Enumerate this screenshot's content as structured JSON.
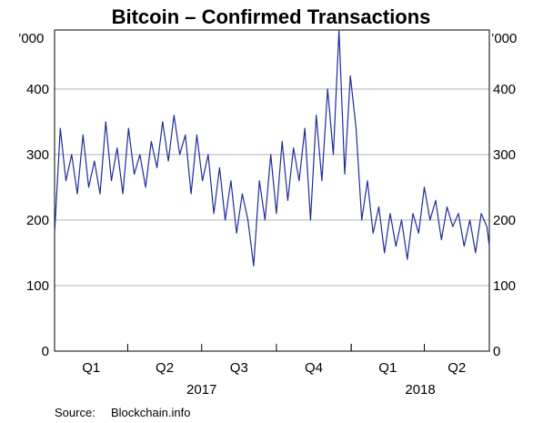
{
  "chart_data": {
    "type": "line",
    "title": "Bitcoin – Confirmed Transactions",
    "y_unit_label_left": "’000",
    "y_unit_label_right": "’000",
    "ylim": [
      0,
      490
    ],
    "y_ticks": [
      0,
      100,
      200,
      300,
      400
    ],
    "x_quarter_labels": [
      "Q1",
      "Q2",
      "Q3",
      "Q4",
      "Q1",
      "Q2"
    ],
    "x_year_labels": [
      "2017",
      "2018"
    ],
    "x_range": [
      "2017-01-01",
      "2018-06-20"
    ],
    "grid": "horizontal",
    "line_color": "#1f2b9c",
    "series": [
      {
        "x": [
          "2017-01-01",
          "2017-01-08",
          "2017-01-15",
          "2017-01-22",
          "2017-01-29",
          "2017-02-05",
          "2017-02-12",
          "2017-02-19",
          "2017-02-26",
          "2017-03-05",
          "2017-03-12",
          "2017-03-19",
          "2017-03-26",
          "2017-04-02",
          "2017-04-09",
          "2017-04-16",
          "2017-04-23",
          "2017-04-30",
          "2017-05-07",
          "2017-05-14",
          "2017-05-21",
          "2017-05-28",
          "2017-06-04",
          "2017-06-11",
          "2017-06-18",
          "2017-06-25",
          "2017-07-02",
          "2017-07-09",
          "2017-07-16",
          "2017-07-23",
          "2017-07-30",
          "2017-08-06",
          "2017-08-13",
          "2017-08-20",
          "2017-08-27",
          "2017-09-03",
          "2017-09-10",
          "2017-09-17",
          "2017-09-24",
          "2017-10-01",
          "2017-10-08",
          "2017-10-15",
          "2017-10-22",
          "2017-10-29",
          "2017-11-05",
          "2017-11-12",
          "2017-11-19",
          "2017-11-26",
          "2017-12-03",
          "2017-12-10",
          "2017-12-17",
          "2017-12-24",
          "2017-12-31",
          "2018-01-07",
          "2018-01-14",
          "2018-01-21",
          "2018-01-28",
          "2018-02-04",
          "2018-02-11",
          "2018-02-18",
          "2018-02-25",
          "2018-03-04",
          "2018-03-11",
          "2018-03-18",
          "2018-03-25",
          "2018-04-01",
          "2018-04-08",
          "2018-04-15",
          "2018-04-22",
          "2018-04-29",
          "2018-05-06",
          "2018-05-13",
          "2018-05-20",
          "2018-05-27",
          "2018-06-03",
          "2018-06-10",
          "2018-06-17",
          "2018-06-20"
        ],
        "values": [
          180,
          340,
          260,
          300,
          240,
          330,
          250,
          290,
          240,
          350,
          260,
          310,
          240,
          340,
          270,
          300,
          250,
          320,
          280,
          350,
          290,
          360,
          300,
          330,
          240,
          330,
          260,
          300,
          210,
          280,
          200,
          260,
          180,
          240,
          200,
          130,
          260,
          200,
          300,
          210,
          320,
          230,
          310,
          260,
          340,
          200,
          360,
          260,
          400,
          300,
          490,
          270,
          420,
          340,
          200,
          260,
          180,
          220,
          150,
          210,
          160,
          200,
          140,
          210,
          180,
          250,
          200,
          230,
          170,
          220,
          190,
          210,
          160,
          200,
          150,
          210,
          190,
          160
        ]
      }
    ],
    "source_label": "Source:",
    "source_text": "Blockchain.info"
  }
}
